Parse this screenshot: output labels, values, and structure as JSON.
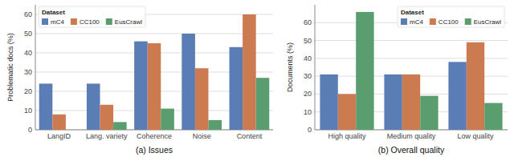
{
  "chart_data": [
    {
      "type": "bar",
      "title": "(a) Issues",
      "y_label": "Problematic docs (%)",
      "categories": [
        "LangID",
        "Lang. variety",
        "Coherence",
        "Noise",
        "Content"
      ],
      "series": [
        {
          "name": "mC4",
          "color": "#5a7db5",
          "values": [
            24,
            24,
            46,
            50,
            43
          ]
        },
        {
          "name": "CC100",
          "color": "#cc7a50",
          "values": [
            8,
            13,
            45,
            32,
            60
          ]
        },
        {
          "name": "EusCrawl",
          "color": "#5a9e6f",
          "values": [
            0,
            4,
            11,
            5,
            27
          ]
        }
      ],
      "ylim": [
        0,
        65
      ],
      "yticks": [
        0,
        10,
        20,
        30,
        40,
        50,
        60
      ],
      "grid": true,
      "legend": "upper left",
      "legend_title": "Dataset"
    },
    {
      "type": "bar",
      "title": "(b) Overall quality",
      "y_label": "Documents (%)",
      "categories": [
        "High quality",
        "Medium quality",
        "Low quality"
      ],
      "series": [
        {
          "name": "mC4",
          "color": "#5a7db5",
          "values": [
            31,
            31,
            38
          ]
        },
        {
          "name": "CC100",
          "color": "#cc7a50",
          "values": [
            20,
            31,
            49
          ]
        },
        {
          "name": "EusCrawl",
          "color": "#5a9e6f",
          "values": [
            66,
            19,
            15
          ]
        }
      ],
      "ylim": [
        0,
        70
      ],
      "yticks": [
        0,
        10,
        20,
        30,
        40,
        50,
        60
      ],
      "grid": true,
      "legend": "upper right",
      "legend_title": "Dataset"
    }
  ]
}
